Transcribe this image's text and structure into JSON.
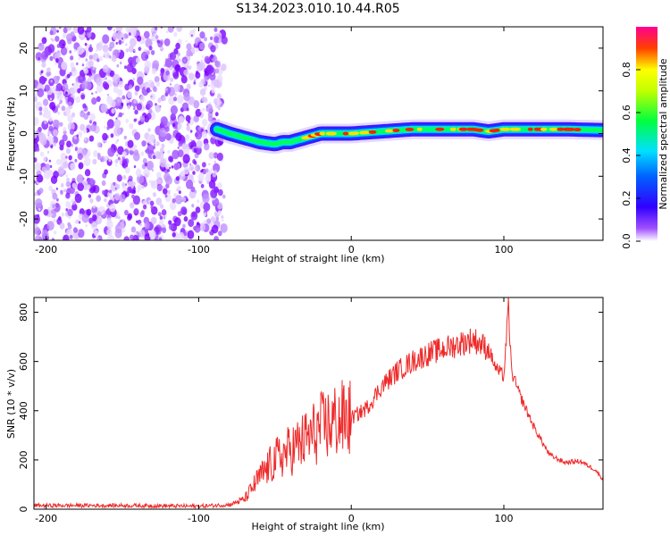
{
  "chart_data": [
    {
      "type": "heatmap",
      "title": "S134.2023.010.10.44.R05",
      "xlabel": "Height of straight line (km)",
      "ylabel": "Frequency (Hz)",
      "xlim": [
        -208,
        165
      ],
      "ylim": [
        -25,
        25
      ],
      "x_ticks": [
        -200,
        -100,
        0,
        100
      ],
      "y_ticks": [
        -20,
        -10,
        0,
        10,
        20
      ],
      "noise_region_x": [
        -208,
        -83
      ],
      "signal_track": {
        "x": [
          -88,
          -80,
          -70,
          -60,
          -50,
          -45,
          -40,
          -30,
          -20,
          -10,
          0,
          20,
          40,
          60,
          80,
          90,
          100,
          120,
          140,
          165
        ],
        "freq": [
          1,
          0,
          -1,
          -2,
          -2.5,
          -2,
          -2,
          -1,
          0,
          0,
          0,
          0.5,
          1,
          1,
          1,
          0.5,
          1,
          1,
          1,
          0.8
        ]
      },
      "colorbar": {
        "label": "Normalized spectral amplitude",
        "range": [
          0,
          1
        ],
        "ticks": [
          "0.0",
          "0.2",
          "0.4",
          "0.6",
          "0.8"
        ],
        "colors": [
          "#ffffff",
          "#7a00ff",
          "#0000ff",
          "#00c8ff",
          "#00ff00",
          "#ffff00",
          "#ff0000",
          "#ff00a0"
        ]
      },
      "grid": false
    },
    {
      "type": "line",
      "xlabel": "Height of straight line (km)",
      "ylabel": "SNR (10 * v/v)",
      "xlim": [
        -208,
        165
      ],
      "ylim": [
        0,
        860
      ],
      "x_ticks": [
        -200,
        -100,
        0,
        100
      ],
      "y_ticks": [
        0,
        200,
        400,
        600,
        800
      ],
      "series": [
        {
          "color": "#ee2a2a",
          "x": [
            -208,
            -150,
            -100,
            -80,
            -70,
            -60,
            -50,
            -40,
            -30,
            -20,
            -10,
            0,
            10,
            20,
            30,
            40,
            50,
            60,
            70,
            80,
            90,
            95,
            100,
            103,
            105,
            110,
            120,
            130,
            140,
            150,
            160,
            165
          ],
          "y": [
            15,
            15,
            12,
            18,
            40,
            130,
            200,
            240,
            280,
            330,
            360,
            370,
            410,
            500,
            560,
            600,
            630,
            650,
            670,
            690,
            650,
            570,
            540,
            820,
            560,
            470,
            330,
            220,
            190,
            195,
            160,
            120
          ]
        }
      ],
      "grid": false
    }
  ]
}
